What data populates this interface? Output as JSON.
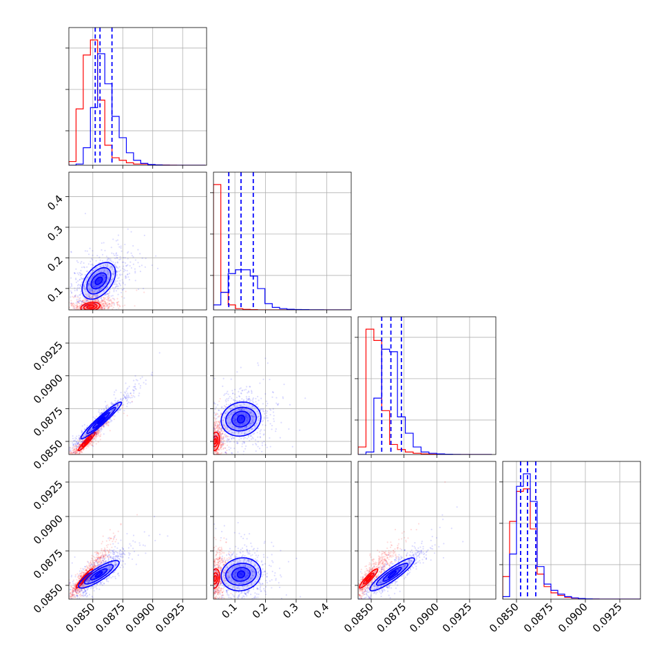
{
  "chart_data": {
    "type": "corner",
    "colors": {
      "chain_a": "#ff0000",
      "chain_b": "#0000ff",
      "grid": "#b0b0b0",
      "frame": "#000000"
    },
    "parameter_ranges": [
      [
        0.083,
        0.0945
      ],
      [
        0.03,
        0.48
      ],
      [
        0.084,
        0.0945
      ],
      [
        0.084,
        0.094
      ]
    ],
    "tick_values": [
      [
        0.085,
        0.0875,
        0.09,
        0.0925
      ],
      [
        0.1,
        0.2,
        0.3,
        0.4
      ],
      [
        0.085,
        0.0875,
        0.09,
        0.0925
      ],
      [
        0.085,
        0.0875,
        0.09,
        0.0925
      ]
    ],
    "tick_labels": [
      [
        "0.0850",
        "0.0875",
        "0.0900",
        "0.0925"
      ],
      [
        "0.1",
        "0.2",
        "0.3",
        "0.4"
      ],
      [
        "0.0850",
        "0.0875",
        "0.0900",
        "0.0925"
      ],
      [
        "0.0850",
        "0.0875",
        "0.0900",
        "0.0925"
      ]
    ],
    "quantiles_chain_b": [
      [
        0.0852,
        0.0856,
        0.0866
      ],
      [
        0.08,
        0.12,
        0.16
      ],
      [
        0.0858,
        0.0865,
        0.0873
      ],
      [
        0.0853,
        0.0858,
        0.0864
      ]
    ],
    "histograms": [
      {
        "bin_edges": [
          0.083,
          0.0836,
          0.0842,
          0.0848,
          0.0854,
          0.086,
          0.0866,
          0.0872,
          0.0878,
          0.0884,
          0.089,
          0.0896,
          0.0902,
          0.0908,
          0.0914,
          0.092,
          0.0926,
          0.0932,
          0.0938,
          0.0944
        ],
        "chain_a": [
          0.03,
          0.45,
          0.88,
          1.0,
          0.52,
          0.16,
          0.06,
          0.04,
          0.02,
          0.01,
          0.01,
          0.005,
          0.003,
          0.002,
          0.001,
          0.0,
          0.0,
          0.0,
          0.0
        ],
        "chain_b": [
          0.0,
          0.01,
          0.14,
          0.46,
          0.89,
          0.65,
          0.39,
          0.22,
          0.1,
          0.04,
          0.015,
          0.006,
          0.003,
          0.001,
          0.0,
          0.0,
          0.0,
          0.0,
          0.0
        ]
      },
      {
        "bin_edges": [
          0.03,
          0.054,
          0.078,
          0.102,
          0.126,
          0.15,
          0.174,
          0.198,
          0.222,
          0.246,
          0.27,
          0.294,
          0.318,
          0.342,
          0.366,
          0.39,
          0.414,
          0.438,
          0.462,
          0.486
        ],
        "chain_a": [
          1.0,
          0.14,
          0.04,
          0.01,
          0.004,
          0.002,
          0.0,
          0.0,
          0.0,
          0.0,
          0.0,
          0.0,
          0.0,
          0.0,
          0.0,
          0.0,
          0.0,
          0.0,
          0.0
        ],
        "chain_b": [
          0.04,
          0.14,
          0.29,
          0.32,
          0.32,
          0.27,
          0.17,
          0.05,
          0.02,
          0.01,
          0.005,
          0.003,
          0.002,
          0.001,
          0.001,
          0.0,
          0.0,
          0.0,
          0.0
        ]
      },
      {
        "bin_edges": [
          0.084,
          0.0846,
          0.0852,
          0.0858,
          0.0864,
          0.087,
          0.0876,
          0.0882,
          0.0888,
          0.0894,
          0.09,
          0.0906,
          0.0912,
          0.0918,
          0.0924,
          0.093,
          0.0936,
          0.0942
        ],
        "chain_a": [
          0.06,
          1.0,
          0.91,
          0.35,
          0.08,
          0.04,
          0.02,
          0.01,
          0.005,
          0.002,
          0.001,
          0.0,
          0.0,
          0.0,
          0.0,
          0.0,
          0.0
        ],
        "chain_b": [
          0.0,
          0.02,
          0.45,
          0.84,
          0.82,
          0.3,
          0.17,
          0.06,
          0.02,
          0.01,
          0.005,
          0.002,
          0.001,
          0.0,
          0.0,
          0.0,
          0.0
        ]
      },
      {
        "bin_edges": [
          0.084,
          0.0845,
          0.085,
          0.0855,
          0.086,
          0.0865,
          0.087,
          0.0875,
          0.088,
          0.0885,
          0.089,
          0.0895,
          0.09,
          0.0905,
          0.091,
          0.0915,
          0.092,
          0.0925,
          0.093,
          0.0935,
          0.094
        ],
        "chain_a": [
          0.18,
          0.62,
          0.86,
          0.88,
          0.56,
          0.2,
          0.1,
          0.05,
          0.03,
          0.015,
          0.008,
          0.004,
          0.002,
          0.001,
          0.0,
          0.0,
          0.0,
          0.0,
          0.0,
          0.0
        ],
        "chain_b": [
          0.02,
          0.36,
          0.9,
          1.0,
          0.78,
          0.26,
          0.12,
          0.07,
          0.04,
          0.02,
          0.01,
          0.005,
          0.002,
          0.001,
          0.0,
          0.0,
          0.0,
          0.0,
          0.0,
          0.0
        ]
      }
    ],
    "pairs": [
      {
        "row": 1,
        "col": 0,
        "chain_a": {
          "center": [
            0.0848,
            0.04
          ],
          "spread": [
            0.0007,
            0.012
          ],
          "corr": 0.3,
          "contour_scale": [
            [
              0.0003,
              0.005
            ],
            [
              0.00055,
              0.01
            ],
            [
              0.0008,
              0.015
            ]
          ]
        },
        "chain_b": {
          "center": [
            0.0855,
            0.125
          ],
          "spread": [
            0.0009,
            0.032
          ],
          "corr": 0.45,
          "contour_scale": [
            [
              0.0003,
              0.012
            ],
            [
              0.00065,
              0.026
            ],
            [
              0.001,
              0.043
            ],
            [
              0.0014,
              0.06
            ]
          ]
        }
      },
      {
        "row": 2,
        "col": 0,
        "chain_a": {
          "center": [
            0.0845,
            0.085
          ],
          "spread": [
            0.0006,
            0.0006
          ],
          "corr": 0.95,
          "contour_scale": [
            [
              0.0002,
              0.0002
            ],
            [
              0.0004,
              0.0004
            ],
            [
              0.0007,
              0.0007
            ]
          ]
        },
        "chain_b": {
          "center": [
            0.0857,
            0.0866
          ],
          "spread": [
            0.0009,
            0.0008
          ],
          "corr": 0.96,
          "contour_scale": [
            [
              0.0003,
              0.00025
            ],
            [
              0.0007,
              0.0006
            ],
            [
              0.0012,
              0.001
            ],
            [
              0.0017,
              0.0014
            ]
          ]
        }
      },
      {
        "row": 2,
        "col": 1,
        "chain_a": {
          "center": [
            0.035,
            0.085
          ],
          "spread": [
            0.012,
            0.0006
          ],
          "corr": 0.2,
          "contour_scale": [
            [
              0.005,
              0.0002
            ],
            [
              0.01,
              0.0004
            ],
            [
              0.015,
              0.0007
            ]
          ]
        },
        "chain_b": {
          "center": [
            0.12,
            0.0867
          ],
          "spread": [
            0.032,
            0.0008
          ],
          "corr": 0.1,
          "contour_scale": [
            [
              0.012,
              0.0003
            ],
            [
              0.03,
              0.0006
            ],
            [
              0.05,
              0.0009
            ],
            [
              0.065,
              0.0013
            ]
          ]
        }
      },
      {
        "row": 3,
        "col": 0,
        "chain_a": {
          "center": [
            0.0843,
            0.0855
          ],
          "spread": [
            0.0007,
            0.0008
          ],
          "corr": 0.95,
          "contour_scale": [
            [
              0.0002,
              0.0002
            ],
            [
              0.0004,
              0.0004
            ],
            [
              0.0007,
              0.0007
            ]
          ]
        },
        "chain_b": {
          "center": [
            0.0855,
            0.0858
          ],
          "spread": [
            0.0009,
            0.0007
          ],
          "corr": 0.85,
          "contour_scale": [
            [
              0.0003,
              0.0002
            ],
            [
              0.0007,
              0.0004
            ],
            [
              0.0012,
              0.0007
            ],
            [
              0.0017,
              0.001
            ]
          ]
        }
      },
      {
        "row": 3,
        "col": 1,
        "chain_a": {
          "center": [
            0.035,
            0.0855
          ],
          "spread": [
            0.012,
            0.0008
          ],
          "corr": 0.2,
          "contour_scale": [
            [
              0.005,
              0.0002
            ],
            [
              0.01,
              0.0004
            ],
            [
              0.015,
              0.0007
            ]
          ]
        },
        "chain_b": {
          "center": [
            0.12,
            0.0858
          ],
          "spread": [
            0.032,
            0.0007
          ],
          "corr": 0.1,
          "contour_scale": [
            [
              0.012,
              0.00025
            ],
            [
              0.03,
              0.0005
            ],
            [
              0.05,
              0.0008
            ],
            [
              0.065,
              0.0012
            ]
          ]
        }
      },
      {
        "row": 3,
        "col": 2,
        "chain_a": {
          "center": [
            0.0848,
            0.0855
          ],
          "spread": [
            0.0007,
            0.0008
          ],
          "corr": 0.92,
          "contour_scale": [
            [
              0.0002,
              0.0002
            ],
            [
              0.0004,
              0.0004
            ],
            [
              0.0007,
              0.0007
            ]
          ]
        },
        "chain_b": {
          "center": [
            0.0866,
            0.0858
          ],
          "spread": [
            0.0009,
            0.0007
          ],
          "corr": 0.9,
          "contour_scale": [
            [
              0.0003,
              0.00025
            ],
            [
              0.0007,
              0.0005
            ],
            [
              0.0012,
              0.0008
            ],
            [
              0.0017,
              0.0012
            ]
          ]
        }
      }
    ]
  }
}
